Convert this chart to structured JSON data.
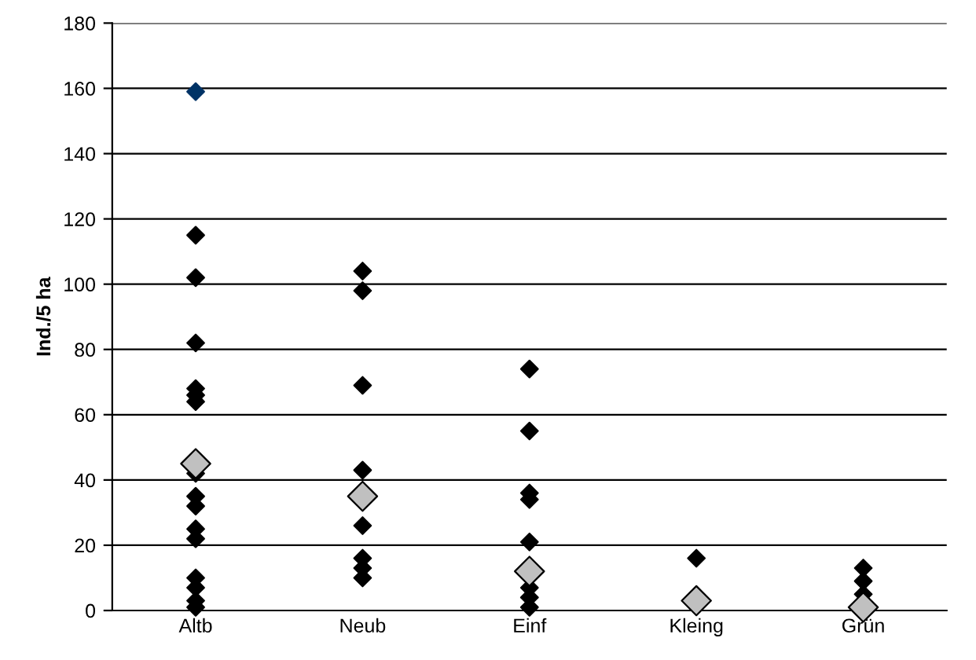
{
  "chart_data": {
    "type": "scatter",
    "ylabel": "Ind./5 ha",
    "categories": [
      "Altb",
      "Neub",
      "Einf",
      "Kleing",
      "Grün"
    ],
    "ylim": [
      0,
      180
    ],
    "yticks": [
      0,
      20,
      40,
      60,
      80,
      100,
      120,
      140,
      160,
      180
    ],
    "grid": "y",
    "marker": "diamond",
    "legend": false,
    "series": [
      {
        "color": "#003366",
        "x": [
          "Altb"
        ],
        "values": [
          159
        ]
      },
      {
        "color": "#000000",
        "x": [
          "Altb",
          "Altb",
          "Altb",
          "Altb",
          "Altb",
          "Altb",
          "Altb",
          "Altb",
          "Altb",
          "Altb",
          "Altb",
          "Altb",
          "Altb",
          "Altb",
          "Altb",
          "Neub",
          "Neub",
          "Neub",
          "Neub",
          "Neub",
          "Neub",
          "Neub",
          "Neub",
          "Einf",
          "Einf",
          "Einf",
          "Einf",
          "Einf",
          "Einf",
          "Einf",
          "Einf",
          "Kleing",
          "Grün",
          "Grün",
          "Grün"
        ],
        "values": [
          115,
          102,
          82,
          68,
          66,
          64,
          42,
          35,
          32,
          25,
          22,
          10,
          7,
          3,
          1,
          104,
          98,
          69,
          43,
          26,
          16,
          13,
          10,
          74,
          55,
          36,
          34,
          21,
          7,
          4,
          1,
          16,
          13,
          9,
          5
        ]
      },
      {
        "color": "#c0c0c0",
        "x": [
          "Altb",
          "Neub",
          "Einf",
          "Kleing",
          "Grün"
        ],
        "values": [
          45,
          35,
          12,
          3,
          1
        ]
      }
    ]
  }
}
